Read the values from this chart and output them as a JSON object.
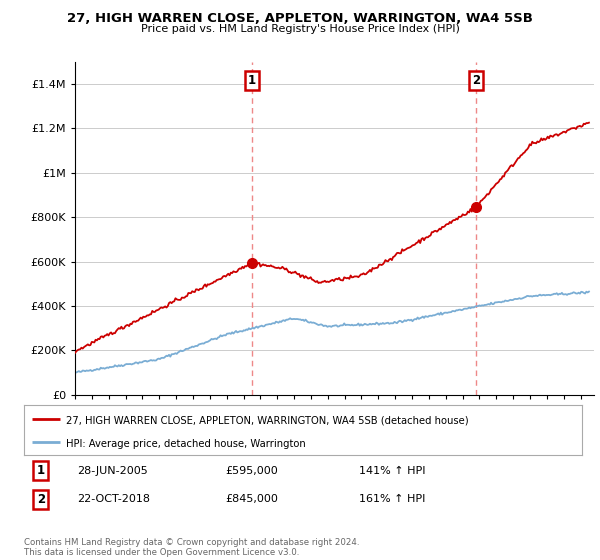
{
  "title": "27, HIGH WARREN CLOSE, APPLETON, WARRINGTON, WA4 5SB",
  "subtitle": "Price paid vs. HM Land Registry's House Price Index (HPI)",
  "legend_line1": "27, HIGH WARREN CLOSE, APPLETON, WARRINGTON, WA4 5SB (detached house)",
  "legend_line2": "HPI: Average price, detached house, Warrington",
  "sale1_date": 2005.49,
  "sale1_price": 595000,
  "sale1_info": "28-JUN-2005",
  "sale1_pct": "141% ↑ HPI",
  "sale2_date": 2018.81,
  "sale2_price": 845000,
  "sale2_info": "22-OCT-2018",
  "sale2_pct": "161% ↑ HPI",
  "red_color": "#cc0000",
  "blue_color": "#7aadd4",
  "dashed_color": "#ee8888",
  "background_color": "#ffffff",
  "grid_color": "#cccccc",
  "ylim": [
    0,
    1500000
  ],
  "xlim_start": 1995,
  "xlim_end": 2025.8,
  "footnote": "Contains HM Land Registry data © Crown copyright and database right 2024.\nThis data is licensed under the Open Government Licence v3.0."
}
